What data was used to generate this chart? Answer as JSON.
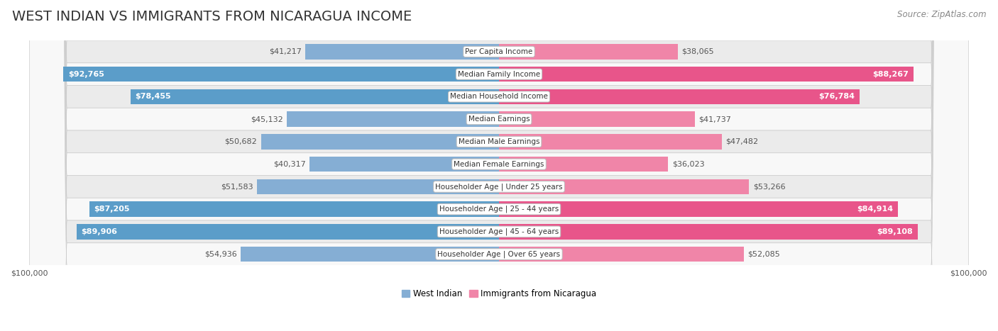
{
  "title": "WEST INDIAN VS IMMIGRANTS FROM NICARAGUA INCOME",
  "source": "Source: ZipAtlas.com",
  "categories": [
    "Per Capita Income",
    "Median Family Income",
    "Median Household Income",
    "Median Earnings",
    "Median Male Earnings",
    "Median Female Earnings",
    "Householder Age | Under 25 years",
    "Householder Age | 25 - 44 years",
    "Householder Age | 45 - 64 years",
    "Householder Age | Over 65 years"
  ],
  "west_indian": [
    41217,
    92765,
    78455,
    45132,
    50682,
    40317,
    51583,
    87205,
    89906,
    54936
  ],
  "nicaragua": [
    38065,
    88267,
    76784,
    41737,
    47482,
    36023,
    53266,
    84914,
    89108,
    52085
  ],
  "max_val": 100000,
  "color_west_indian": "#85aed4",
  "color_nicaragua": "#f085a8",
  "color_west_indian_strong": "#5b9dc9",
  "color_nicaragua_strong": "#e8558a",
  "bg_row_gray": "#ebebeb",
  "bg_row_white": "#f8f8f8",
  "label_color_dark": "#555555",
  "label_color_white": "#ffffff",
  "title_fontsize": 14,
  "source_fontsize": 8.5,
  "bar_label_fontsize": 8,
  "category_fontsize": 7.5,
  "legend_fontsize": 8.5,
  "axis_label_fontsize": 8,
  "legend_west_indian": "West Indian",
  "legend_nicaragua": "Immigrants from Nicaragua",
  "white_label_threshold": 70000
}
